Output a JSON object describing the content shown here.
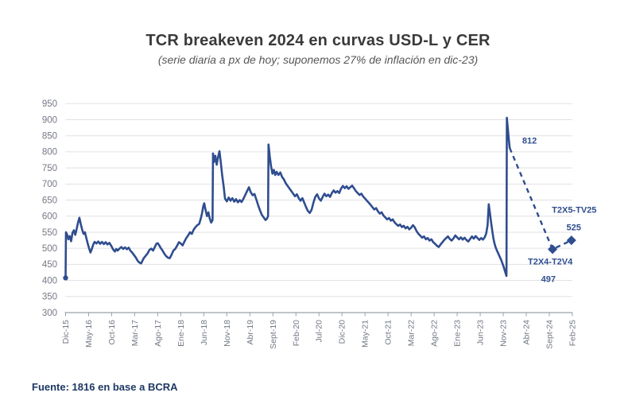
{
  "header": {
    "title": "TCR breakeven 2024 en curvas USD-L y CER",
    "subtitle": "(serie diaria a px de hoy; suponemos 27% de inflación en dic-23)"
  },
  "footer": {
    "source": "Fuente: 1816 en base a BCRA"
  },
  "colors": {
    "series": "#2f4d8f",
    "projection": "#2f4d8f",
    "annotation": "#2f4d8f",
    "grid": "#e1e1e4",
    "axis": "#9aa0a8",
    "tick_label": "#737984",
    "title_text": "#3a3a3a",
    "subtitle_text": "#565656",
    "source_text": "#1f3864"
  },
  "chart_data": {
    "type": "line",
    "title": "TCR breakeven 2024 en curvas USD-L y CER",
    "subtitle": "(serie diaria a px de hoy; suponemos 27% de inflación en dic-23)",
    "source": "Fuente: 1816 en base a BCRA",
    "grid": "horizontal",
    "legend": "none",
    "x_axis": {
      "unit": "months since Dic-15, tick every 5 months",
      "tick_step_months": 5,
      "tick_labels": [
        "Dic-15",
        "May-16",
        "Oct-16",
        "Mar-17",
        "Ago-17",
        "Ene-18",
        "Jun-18",
        "Nov-18",
        "Abr-19",
        "Sept-19",
        "Feb-20",
        "Jul-20",
        "Dic-20",
        "May-21",
        "Oct-21",
        "Mar-22",
        "Ago-22",
        "Ene-23",
        "Jun-23",
        "Nov-23",
        "Abr-24",
        "Sept-24",
        "Feb-25"
      ]
    },
    "y_axis": {
      "min": 300,
      "max": 950,
      "step": 50,
      "ticks": [
        950,
        900,
        850,
        800,
        750,
        700,
        650,
        600,
        550,
        500,
        450,
        400,
        350,
        300
      ]
    },
    "series": [
      {
        "name": "TCR breakeven serie diaria",
        "style": "solid",
        "start_marker": "dot",
        "points": [
          [
            0,
            408
          ],
          [
            0.08,
            550
          ],
          [
            0.35,
            542
          ],
          [
            0.6,
            528
          ],
          [
            0.9,
            538
          ],
          [
            1.2,
            522
          ],
          [
            1.5,
            548
          ],
          [
            1.8,
            556
          ],
          [
            2.1,
            542
          ],
          [
            2.4,
            560
          ],
          [
            2.7,
            580
          ],
          [
            3,
            595
          ],
          [
            3.3,
            575
          ],
          [
            3.6,
            558
          ],
          [
            3.9,
            545
          ],
          [
            4.2,
            550
          ],
          [
            4.5,
            532
          ],
          [
            4.8,
            515
          ],
          [
            5.1,
            500
          ],
          [
            5.4,
            487
          ],
          [
            5.7,
            498
          ],
          [
            6,
            512
          ],
          [
            6.3,
            520
          ],
          [
            6.7,
            515
          ],
          [
            7.1,
            521
          ],
          [
            7.5,
            514
          ],
          [
            7.9,
            520
          ],
          [
            8.3,
            513
          ],
          [
            8.7,
            519
          ],
          [
            9.1,
            512
          ],
          [
            9.5,
            517
          ],
          [
            9.9,
            508
          ],
          [
            10.3,
            497
          ],
          [
            10.7,
            490
          ],
          [
            11,
            498
          ],
          [
            11.3,
            493
          ],
          [
            11.7,
            499
          ],
          [
            12.1,
            504
          ],
          [
            12.5,
            498
          ],
          [
            12.9,
            503
          ],
          [
            13.3,
            497
          ],
          [
            13.7,
            502
          ],
          [
            14.1,
            492
          ],
          [
            14.5,
            486
          ],
          [
            14.9,
            478
          ],
          [
            15.3,
            470
          ],
          [
            15.7,
            460
          ],
          [
            16.1,
            455
          ],
          [
            16.4,
            453
          ],
          [
            16.7,
            462
          ],
          [
            17,
            470
          ],
          [
            17.4,
            477
          ],
          [
            17.8,
            484
          ],
          [
            18.2,
            495
          ],
          [
            18.6,
            499
          ],
          [
            19,
            493
          ],
          [
            19.4,
            505
          ],
          [
            19.7,
            514
          ],
          [
            20,
            516
          ],
          [
            20.3,
            510
          ],
          [
            20.6,
            502
          ],
          [
            21,
            494
          ],
          [
            21.4,
            484
          ],
          [
            21.8,
            476
          ],
          [
            22.2,
            471
          ],
          [
            22.6,
            469
          ],
          [
            23,
            480
          ],
          [
            23.4,
            493
          ],
          [
            23.8,
            498
          ],
          [
            24.2,
            508
          ],
          [
            24.6,
            519
          ],
          [
            25,
            515
          ],
          [
            25.4,
            509
          ],
          [
            25.8,
            521
          ],
          [
            26.2,
            532
          ],
          [
            26.6,
            540
          ],
          [
            27,
            550
          ],
          [
            27.4,
            545
          ],
          [
            27.8,
            558
          ],
          [
            28.2,
            566
          ],
          [
            28.6,
            572
          ],
          [
            29,
            576
          ],
          [
            29.3,
            590
          ],
          [
            29.6,
            608
          ],
          [
            29.9,
            632
          ],
          [
            30.1,
            640
          ],
          [
            30.4,
            618
          ],
          [
            30.7,
            600
          ],
          [
            31,
            612
          ],
          [
            31.3,
            592
          ],
          [
            31.6,
            580
          ],
          [
            31.9,
            588
          ],
          [
            32,
            795
          ],
          [
            32.2,
            768
          ],
          [
            32.5,
            788
          ],
          [
            32.8,
            760
          ],
          [
            33.1,
            784
          ],
          [
            33.4,
            802
          ],
          [
            33.7,
            766
          ],
          [
            34,
            726
          ],
          [
            34.3,
            694
          ],
          [
            34.6,
            655
          ],
          [
            35,
            646
          ],
          [
            35.4,
            658
          ],
          [
            35.8,
            648
          ],
          [
            36.2,
            656
          ],
          [
            36.6,
            645
          ],
          [
            37,
            653
          ],
          [
            37.4,
            643
          ],
          [
            37.8,
            650
          ],
          [
            38.2,
            644
          ],
          [
            38.6,
            654
          ],
          [
            39,
            666
          ],
          [
            39.4,
            678
          ],
          [
            39.8,
            690
          ],
          [
            40.2,
            674
          ],
          [
            40.6,
            665
          ],
          [
            41,
            669
          ],
          [
            41.4,
            652
          ],
          [
            41.8,
            634
          ],
          [
            42.2,
            618
          ],
          [
            42.6,
            604
          ],
          [
            43,
            596
          ],
          [
            43.4,
            588
          ],
          [
            43.7,
            592
          ],
          [
            43.95,
            600
          ],
          [
            44.05,
            823
          ],
          [
            44.3,
            788
          ],
          [
            44.6,
            755
          ],
          [
            44.9,
            732
          ],
          [
            45.2,
            744
          ],
          [
            45.5,
            728
          ],
          [
            45.8,
            738
          ],
          [
            46.2,
            728
          ],
          [
            46.6,
            736
          ],
          [
            47,
            722
          ],
          [
            47.4,
            714
          ],
          [
            47.8,
            702
          ],
          [
            48.2,
            694
          ],
          [
            48.6,
            686
          ],
          [
            49,
            678
          ],
          [
            49.4,
            670
          ],
          [
            49.8,
            662
          ],
          [
            50.2,
            668
          ],
          [
            50.6,
            656
          ],
          [
            51,
            648
          ],
          [
            51.4,
            656
          ],
          [
            51.8,
            642
          ],
          [
            52.2,
            628
          ],
          [
            52.6,
            616
          ],
          [
            53,
            610
          ],
          [
            53.4,
            620
          ],
          [
            53.8,
            642
          ],
          [
            54.2,
            660
          ],
          [
            54.6,
            668
          ],
          [
            55,
            655
          ],
          [
            55.4,
            648
          ],
          [
            55.8,
            660
          ],
          [
            56.2,
            670
          ],
          [
            56.6,
            662
          ],
          [
            57,
            667
          ],
          [
            57.4,
            660
          ],
          [
            57.8,
            672
          ],
          [
            58.2,
            680
          ],
          [
            58.6,
            673
          ],
          [
            59,
            678
          ],
          [
            59.4,
            672
          ],
          [
            59.8,
            686
          ],
          [
            60.2,
            694
          ],
          [
            60.6,
            687
          ],
          [
            61,
            693
          ],
          [
            61.4,
            685
          ],
          [
            61.8,
            690
          ],
          [
            62.2,
            695
          ],
          [
            62.6,
            687
          ],
          [
            63,
            678
          ],
          [
            63.4,
            672
          ],
          [
            63.8,
            666
          ],
          [
            64.2,
            670
          ],
          [
            64.6,
            661
          ],
          [
            65,
            655
          ],
          [
            65.4,
            648
          ],
          [
            65.8,
            642
          ],
          [
            66.2,
            635
          ],
          [
            66.6,
            628
          ],
          [
            67,
            621
          ],
          [
            67.4,
            625
          ],
          [
            67.8,
            615
          ],
          [
            68.2,
            608
          ],
          [
            68.6,
            612
          ],
          [
            69,
            602
          ],
          [
            69.4,
            596
          ],
          [
            69.8,
            590
          ],
          [
            70.2,
            594
          ],
          [
            70.6,
            586
          ],
          [
            71,
            590
          ],
          [
            71.4,
            581
          ],
          [
            71.8,
            575
          ],
          [
            72.2,
            570
          ],
          [
            72.6,
            574
          ],
          [
            73,
            566
          ],
          [
            73.4,
            570
          ],
          [
            73.8,
            562
          ],
          [
            74.2,
            567
          ],
          [
            74.6,
            559
          ],
          [
            75,
            564
          ],
          [
            75.4,
            572
          ],
          [
            75.8,
            565
          ],
          [
            76.2,
            553
          ],
          [
            76.6,
            545
          ],
          [
            77,
            539
          ],
          [
            77.4,
            533
          ],
          [
            77.8,
            537
          ],
          [
            78.2,
            528
          ],
          [
            78.6,
            532
          ],
          [
            79,
            524
          ],
          [
            79.4,
            528
          ],
          [
            79.8,
            519
          ],
          [
            80.2,
            514
          ],
          [
            80.6,
            508
          ],
          [
            81,
            504
          ],
          [
            81.4,
            512
          ],
          [
            81.8,
            519
          ],
          [
            82.2,
            526
          ],
          [
            82.6,
            532
          ],
          [
            83,
            537
          ],
          [
            83.4,
            529
          ],
          [
            83.8,
            524
          ],
          [
            84.2,
            531
          ],
          [
            84.6,
            540
          ],
          [
            85,
            534
          ],
          [
            85.4,
            528
          ],
          [
            85.8,
            534
          ],
          [
            86.2,
            527
          ],
          [
            86.6,
            533
          ],
          [
            87,
            526
          ],
          [
            87.4,
            521
          ],
          [
            87.8,
            529
          ],
          [
            88.2,
            537
          ],
          [
            88.6,
            530
          ],
          [
            89,
            538
          ],
          [
            89.4,
            532
          ],
          [
            89.8,
            526
          ],
          [
            90.2,
            532
          ],
          [
            90.6,
            527
          ],
          [
            91,
            535
          ],
          [
            91.3,
            546
          ],
          [
            91.6,
            572
          ],
          [
            91.85,
            637
          ],
          [
            92.1,
            610
          ],
          [
            92.35,
            582
          ],
          [
            92.6,
            556
          ],
          [
            92.85,
            532
          ],
          [
            93.1,
            515
          ],
          [
            93.35,
            503
          ],
          [
            93.6,
            494
          ],
          [
            93.85,
            486
          ],
          [
            94.1,
            478
          ],
          [
            94.35,
            470
          ],
          [
            94.6,
            462
          ],
          [
            94.85,
            452
          ],
          [
            95.1,
            442
          ],
          [
            95.35,
            430
          ],
          [
            95.6,
            418
          ],
          [
            95.7,
            414
          ],
          [
            95.78,
            906
          ],
          [
            95.95,
            880
          ],
          [
            96.1,
            856
          ],
          [
            96.25,
            832
          ],
          [
            96.4,
            812
          ]
        ]
      },
      {
        "name": "Proyección a vencimientos T2X4-T2V4 y T2X5-TV25",
        "style": "dashed",
        "marker": "diamond",
        "points": [
          [
            96.4,
            812
          ],
          [
            105.7,
            497
          ],
          [
            109.8,
            525
          ]
        ]
      }
    ],
    "annotations": [
      {
        "text": "812",
        "x": 100.7,
        "v": 834
      },
      {
        "text": "T2X5-TV25",
        "x": 110.4,
        "v": 619
      },
      {
        "text": "525",
        "x": 110.3,
        "v": 565
      },
      {
        "text": "T2X4-T2V4",
        "x": 105.2,
        "v": 458
      },
      {
        "text": "497",
        "x": 104.8,
        "v": 404
      }
    ]
  }
}
